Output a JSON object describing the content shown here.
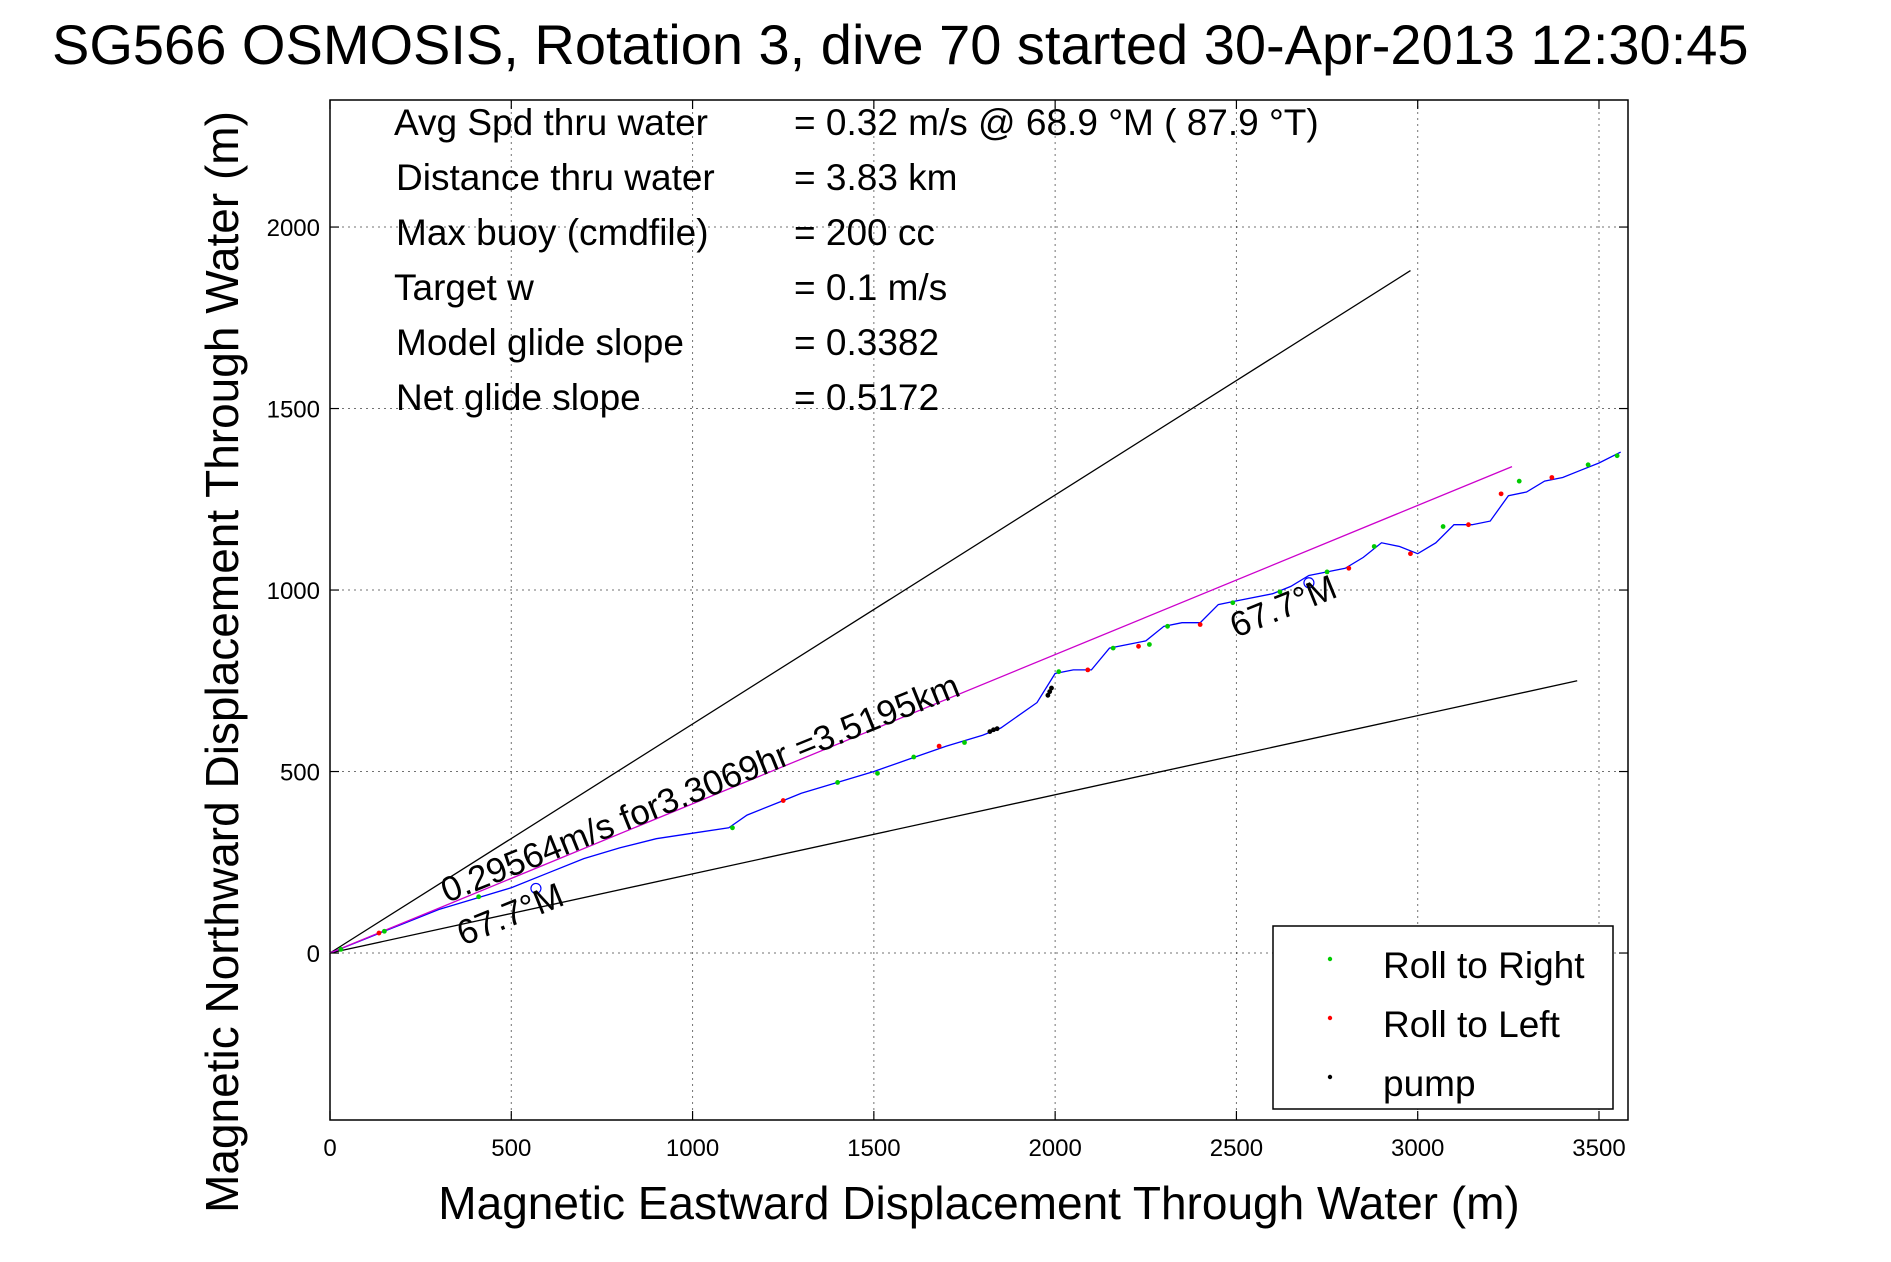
{
  "chart_data": {
    "type": "line",
    "title": "SG566 OSMOSIS, Rotation 3, dive 70 started 30-Apr-2013 12:30:45",
    "xlabel": "Magnetic Eastward Displacement Through Water (m)",
    "ylabel": "Magnetic Northward Displacement Through Water (m)",
    "xlim": [
      0,
      3580
    ],
    "ylim": [
      -460,
      2350
    ],
    "xticks": [
      0,
      500,
      1000,
      1500,
      2000,
      2500,
      3000,
      3500
    ],
    "yticks": [
      0,
      500,
      1000,
      1500,
      2000
    ],
    "grid": true,
    "info_rows": [
      {
        "label": "Avg Spd thru water",
        "value": "=  0.32 m/s @  68.9 °M ( 87.9 °T)"
      },
      {
        "label": "Distance thru water",
        "value": "=  3.83 km"
      },
      {
        "label": "Max buoy (cmdfile)",
        "value": "= 200 cc"
      },
      {
        "label": "Target w",
        "value": "= 0.1 m/s"
      },
      {
        "label": "Model glide slope",
        "value": "= 0.3382"
      },
      {
        "label": "Net glide slope",
        "value": "= 0.5172"
      }
    ],
    "annotations": {
      "net_speed": "0.29564m/s for3.3069hr =3.5195km",
      "heading_lower": "67.7°M",
      "heading_upper": "67.7°M"
    },
    "legend": {
      "position": "bottom-right",
      "items": [
        {
          "label": "Roll to Right",
          "color": "#00cc00"
        },
        {
          "label": "Roll to Left",
          "color": "#ff0000"
        },
        {
          "label": "pump",
          "color": "#000000"
        }
      ]
    },
    "series": [
      {
        "kind": "track",
        "color": "#0000ff",
        "x": [
          0,
          50,
          100,
          150,
          200,
          300,
          400,
          500,
          600,
          700,
          800,
          900,
          1000,
          1100,
          1150,
          1250,
          1300,
          1400,
          1500,
          1600,
          1700,
          1800,
          1850,
          1950,
          2000,
          2050,
          2100,
          2150,
          2200,
          2250,
          2300,
          2350,
          2400,
          2450,
          2500,
          2600,
          2650,
          2700,
          2750,
          2800,
          2850,
          2900,
          2950,
          3000,
          3050,
          3100,
          3150,
          3200,
          3250,
          3300,
          3350,
          3400,
          3450,
          3500,
          3560
        ],
        "y": [
          0,
          20,
          40,
          60,
          80,
          120,
          150,
          180,
          220,
          260,
          290,
          315,
          330,
          345,
          380,
          420,
          440,
          470,
          500,
          535,
          570,
          600,
          620,
          690,
          770,
          780,
          780,
          840,
          850,
          860,
          900,
          910,
          910,
          960,
          970,
          990,
          1010,
          1040,
          1050,
          1060,
          1090,
          1130,
          1120,
          1100,
          1130,
          1180,
          1180,
          1190,
          1260,
          1270,
          1300,
          1310,
          1330,
          1350,
          1380
        ]
      },
      {
        "kind": "net-track",
        "color": "#cc00cc",
        "x": [
          0,
          3260
        ],
        "y": [
          0,
          1340
        ]
      },
      {
        "kind": "bound-upper",
        "color": "#000000",
        "x": [
          0,
          2980
        ],
        "y": [
          0,
          1880
        ]
      },
      {
        "kind": "bound-lower",
        "color": "#000000",
        "x": [
          0,
          3440
        ],
        "y": [
          0,
          750
        ]
      },
      {
        "kind": "marker",
        "name": "Roll to Right",
        "color": "#00cc00",
        "points": [
          [
            30,
            10
          ],
          [
            150,
            60
          ],
          [
            410,
            155
          ],
          [
            1110,
            345
          ],
          [
            1400,
            470
          ],
          [
            1510,
            495
          ],
          [
            1610,
            540
          ],
          [
            1750,
            580
          ],
          [
            2010,
            775
          ],
          [
            2160,
            840
          ],
          [
            2260,
            850
          ],
          [
            2310,
            900
          ],
          [
            2490,
            965
          ],
          [
            2620,
            995
          ],
          [
            2750,
            1050
          ],
          [
            2880,
            1120
          ],
          [
            3070,
            1175
          ],
          [
            3280,
            1300
          ],
          [
            3470,
            1345
          ],
          [
            3550,
            1370
          ]
        ]
      },
      {
        "kind": "marker",
        "name": "Roll to Left",
        "color": "#ff0000",
        "points": [
          [
            135,
            55
          ],
          [
            1250,
            420
          ],
          [
            1680,
            570
          ],
          [
            2090,
            780
          ],
          [
            2230,
            845
          ],
          [
            2400,
            905
          ],
          [
            2810,
            1060
          ],
          [
            2980,
            1100
          ],
          [
            3140,
            1180
          ],
          [
            3230,
            1265
          ],
          [
            3370,
            1310
          ]
        ]
      },
      {
        "kind": "marker",
        "name": "pump",
        "color": "#000000",
        "points": [
          [
            1820,
            610
          ],
          [
            1830,
            615
          ],
          [
            1840,
            618
          ],
          [
            1980,
            710
          ],
          [
            1985,
            720
          ],
          [
            1990,
            730
          ]
        ]
      }
    ]
  }
}
